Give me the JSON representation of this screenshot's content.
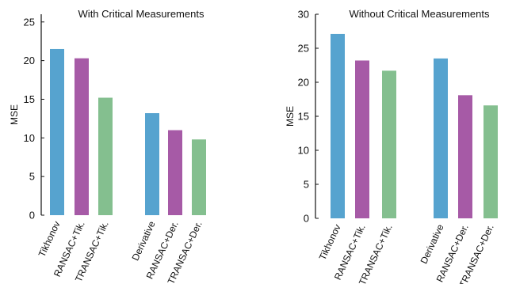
{
  "colors": {
    "blue": "#56a3cf",
    "purple": "#a65aa6",
    "green": "#84bf8f",
    "axis": "#111111"
  },
  "chart_data": [
    {
      "type": "bar",
      "title": "With Critical Measurements",
      "xlabel": "",
      "ylabel": "MSE",
      "ylim": [
        0,
        26
      ],
      "yticks": [
        0,
        5,
        10,
        15,
        20,
        25
      ],
      "grid": false,
      "categories": [
        "Tikhonov",
        "RANSAC+Tik.",
        "TRANSAC+Tik.",
        "Derivative",
        "RANSAC+Der.",
        "TRANSAC+Der."
      ],
      "values": [
        21.5,
        20.3,
        15.2,
        13.2,
        11.0,
        9.8
      ],
      "bar_colors": [
        "blue",
        "purple",
        "green",
        "blue",
        "purple",
        "green"
      ]
    },
    {
      "type": "bar",
      "title": "Without Critical Measurements",
      "xlabel": "",
      "ylabel": "MSE",
      "ylim": [
        0,
        30
      ],
      "yticks": [
        0,
        5,
        10,
        15,
        20,
        25,
        30
      ],
      "grid": false,
      "categories": [
        "Tikhonov",
        "RANSAC+Tik.",
        "TRANSAC+Tik.",
        "Derivative",
        "RANSAC+Der.",
        "TRANSAC+Der."
      ],
      "values": [
        27.1,
        23.2,
        21.7,
        23.5,
        18.1,
        16.6
      ],
      "bar_colors": [
        "blue",
        "purple",
        "green",
        "blue",
        "purple",
        "green"
      ]
    }
  ]
}
